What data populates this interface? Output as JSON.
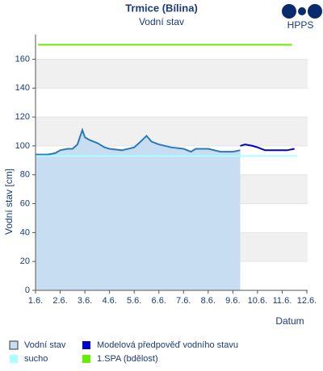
{
  "chart_data": {
    "type": "line",
    "title": "Trmice (Bílina)",
    "subtitle": "Vodní stav",
    "logo": "HPPS",
    "y_label": "Vodní stav [cm]",
    "x_label": "Datum",
    "xlim": [
      1,
      12
    ],
    "xticks": [
      {
        "value": 1,
        "label": "1.6."
      },
      {
        "value": 2,
        "label": "2.6."
      },
      {
        "value": 3,
        "label": "3.6."
      },
      {
        "value": 4,
        "label": "4.6."
      },
      {
        "value": 5,
        "label": "5.6."
      },
      {
        "value": 6,
        "label": "6.6."
      },
      {
        "value": 7,
        "label": "7.6."
      },
      {
        "value": 8,
        "label": "8.6."
      },
      {
        "value": 9,
        "label": "9.6."
      },
      {
        "value": 10,
        "label": "10.6."
      },
      {
        "value": 11,
        "label": "11.6."
      },
      {
        "value": 12,
        "label": "12.6."
      }
    ],
    "ylim": [
      0,
      177
    ],
    "yticks": [
      0,
      20,
      40,
      60,
      80,
      100,
      120,
      140,
      160
    ],
    "series": [
      {
        "name": "Vodní stav",
        "color": "#2a7ab8",
        "fill": "#c6ddf2",
        "x": [
          1,
          1.5,
          1.8,
          2,
          2.3,
          2.5,
          2.7,
          2.9,
          3.0,
          3.2,
          3.5,
          3.8,
          4.0,
          4.5,
          5.0,
          5.2,
          5.5,
          5.7,
          6.0,
          6.5,
          7.0,
          7.3,
          7.5,
          8.0,
          8.5,
          9.0,
          9.3
        ],
        "values": [
          94,
          94,
          95,
          97,
          98,
          98,
          101,
          111,
          106,
          104,
          102,
          99,
          98,
          97,
          99,
          102,
          107,
          103,
          101,
          99,
          98,
          96,
          98,
          98,
          96,
          96,
          97
        ]
      },
      {
        "name": "Modelová předpověď vodního stavu",
        "color": "#0000cc",
        "x": [
          9.3,
          9.5,
          9.8,
          10.0,
          10.3,
          10.6,
          10.9,
          11.2,
          11.5
        ],
        "values": [
          100,
          101,
          100,
          99,
          97,
          97,
          97,
          97,
          98
        ]
      },
      {
        "name": "sucho",
        "color": "#aaffff",
        "x": [
          1,
          11.6
        ],
        "values": [
          93,
          93
        ]
      },
      {
        "name": "1.SPA (bdělost)",
        "color": "#66ee00",
        "x": [
          1.1,
          11.4
        ],
        "values": [
          170,
          170
        ]
      }
    ]
  }
}
